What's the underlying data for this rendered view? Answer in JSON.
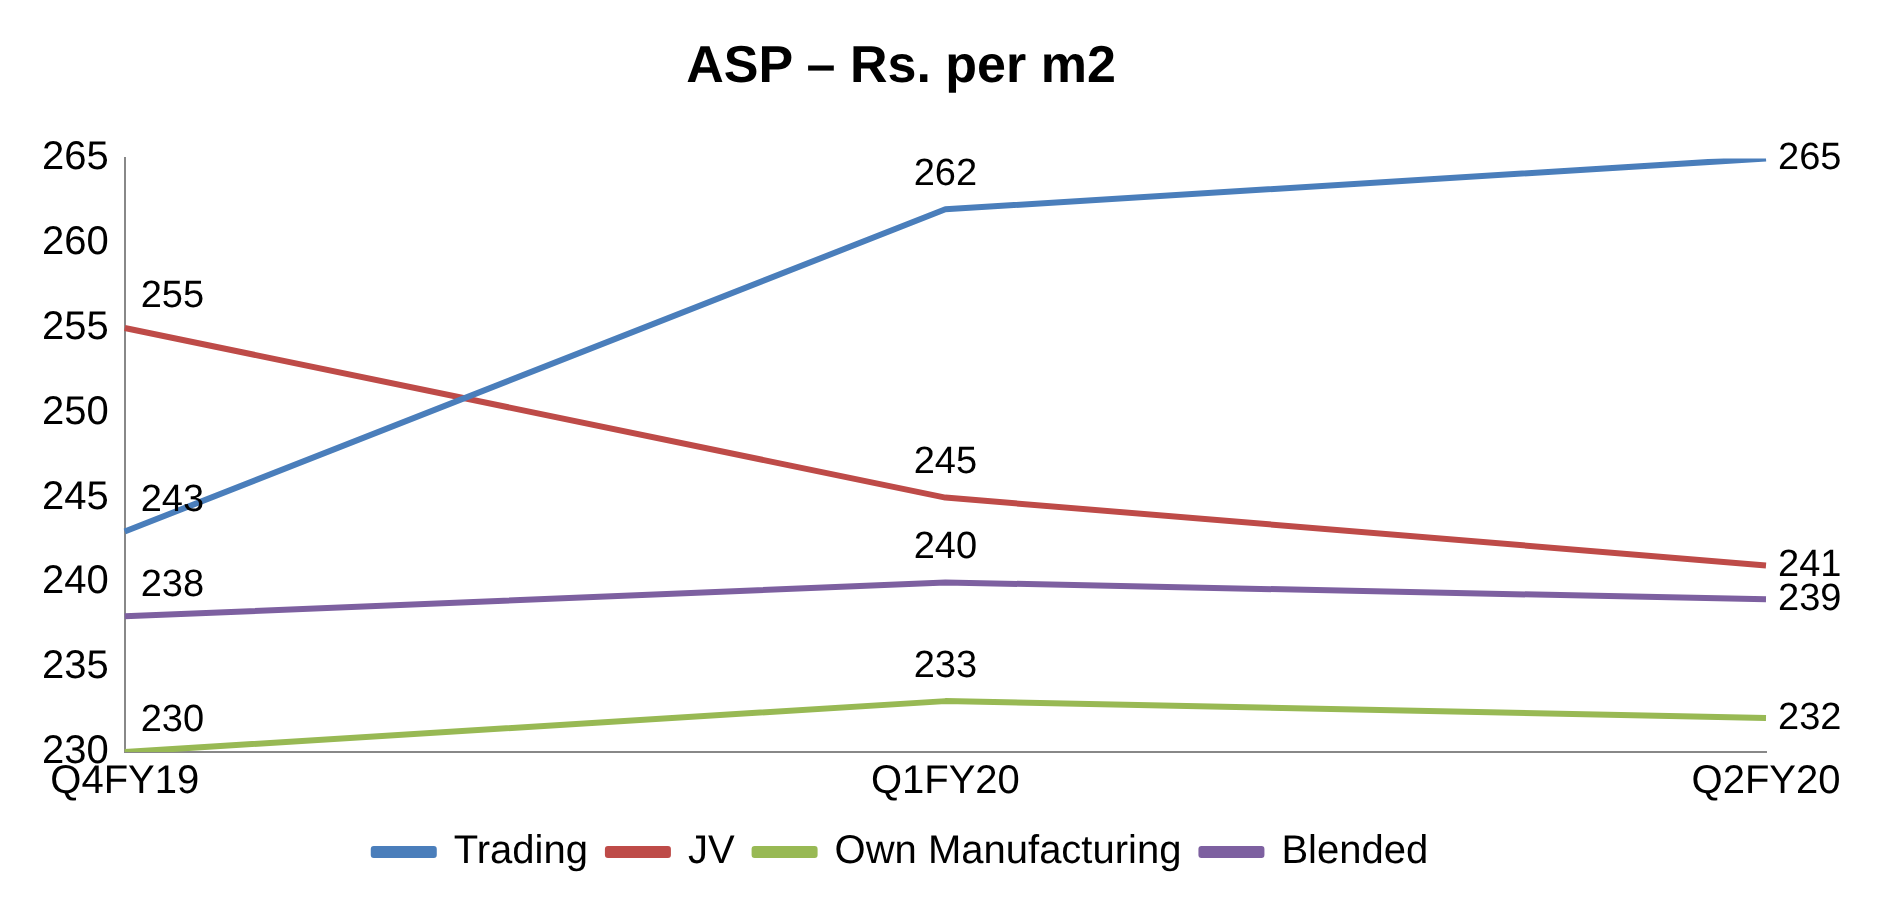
{
  "chart_data": {
    "type": "line",
    "title": "ASP – Rs. per m2",
    "categories": [
      "Q4FY19",
      "Q1FY20",
      "Q2FY20"
    ],
    "series": [
      {
        "name": "Trading",
        "color": "#4a7ebb",
        "values": [
          243,
          262,
          265
        ]
      },
      {
        "name": "JV",
        "color": "#be4b48",
        "values": [
          255,
          245,
          241
        ]
      },
      {
        "name": "Own Manufacturing",
        "color": "#98b954",
        "values": [
          230,
          233,
          232
        ]
      },
      {
        "name": "Blended",
        "color": "#7d60a0",
        "values": [
          238,
          240,
          239
        ]
      }
    ],
    "ylim": [
      230,
      265
    ],
    "yticks": [
      230,
      235,
      240,
      245,
      250,
      255,
      260,
      265
    ],
    "grid": false,
    "legend": "bottom",
    "data_labels": true,
    "marker": "none",
    "line_style": "solid"
  }
}
